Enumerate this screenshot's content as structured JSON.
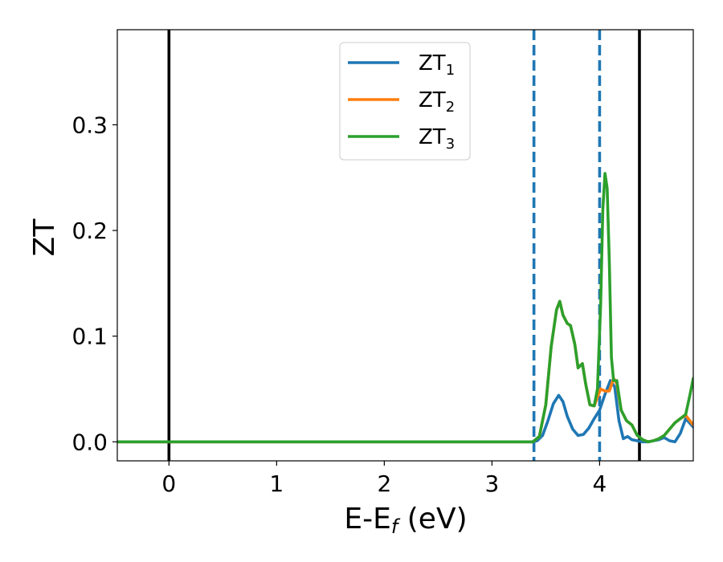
{
  "chart_data": {
    "type": "line",
    "title": "",
    "xlabel": {
      "main": "E-E",
      "sub": "f",
      "unit": " (eV)"
    },
    "ylabel": "ZT",
    "xlim": [
      -0.48,
      4.87
    ],
    "ylim": [
      -0.018,
      0.39
    ],
    "xticks": [
      0,
      1,
      2,
      3,
      4
    ],
    "xtick_labels": [
      "0",
      "1",
      "2",
      "3",
      "4"
    ],
    "yticks": [
      0.0,
      0.1,
      0.2,
      0.3
    ],
    "ytick_labels": [
      "0.0",
      "0.1",
      "0.2",
      "0.3"
    ],
    "grid": false,
    "legend_position": "top-center",
    "vlines": [
      {
        "x": 0.0,
        "style": "solid",
        "color": "#000000"
      },
      {
        "x": 4.37,
        "style": "solid",
        "color": "#000000"
      },
      {
        "x": 3.39,
        "style": "dashed",
        "color": "#1f77b4"
      },
      {
        "x": 4.0,
        "style": "dashed",
        "color": "#1f77b4"
      }
    ],
    "series": [
      {
        "name": "ZT",
        "sub": "1",
        "color": "#1f77b4",
        "x": [
          -0.48,
          3.0,
          3.38,
          3.42,
          3.47,
          3.52,
          3.57,
          3.62,
          3.66,
          3.7,
          3.75,
          3.8,
          3.85,
          3.9,
          3.95,
          4.0,
          4.05,
          4.1,
          4.14,
          4.18,
          4.22,
          4.26,
          4.3,
          4.35,
          4.4,
          4.45,
          4.5,
          4.55,
          4.6,
          4.65,
          4.7,
          4.75,
          4.8,
          4.87
        ],
        "y": [
          0.0,
          0.0,
          0.0,
          0.001,
          0.006,
          0.02,
          0.036,
          0.044,
          0.038,
          0.024,
          0.012,
          0.006,
          0.007,
          0.013,
          0.022,
          0.03,
          0.045,
          0.058,
          0.052,
          0.02,
          0.003,
          0.005,
          0.002,
          0.001,
          0.0,
          0.0,
          0.001,
          0.002,
          0.004,
          0.001,
          0.0,
          0.008,
          0.022,
          0.014
        ]
      },
      {
        "name": "ZT",
        "sub": "2",
        "color": "#ff7f0e",
        "x": [
          -0.48,
          3.0,
          3.38,
          3.44,
          3.5,
          3.55,
          3.6,
          3.63,
          3.66,
          3.7,
          3.73,
          3.77,
          3.8,
          3.84,
          3.87,
          3.91,
          3.95,
          3.99,
          4.01,
          4.05,
          4.09,
          4.13,
          4.16,
          4.2,
          4.25,
          4.3,
          4.35,
          4.4,
          4.45,
          4.5,
          4.55,
          4.6,
          4.65,
          4.7,
          4.75,
          4.8,
          4.87
        ],
        "y": [
          0.0,
          0.0,
          0.0,
          0.005,
          0.035,
          0.09,
          0.125,
          0.133,
          0.12,
          0.112,
          0.11,
          0.092,
          0.07,
          0.074,
          0.055,
          0.035,
          0.034,
          0.045,
          0.05,
          0.048,
          0.048,
          0.06,
          0.055,
          0.03,
          0.02,
          0.016,
          0.006,
          0.002,
          0.0,
          0.001,
          0.003,
          0.006,
          0.012,
          0.018,
          0.022,
          0.025,
          0.016
        ]
      },
      {
        "name": "ZT",
        "sub": "3",
        "color": "#2ca02c",
        "x": [
          -0.48,
          3.0,
          3.38,
          3.44,
          3.5,
          3.55,
          3.6,
          3.63,
          3.66,
          3.7,
          3.73,
          3.77,
          3.8,
          3.84,
          3.87,
          3.91,
          3.95,
          3.98,
          4.01,
          4.03,
          4.05,
          4.07,
          4.09,
          4.11,
          4.13,
          4.16,
          4.2,
          4.25,
          4.3,
          4.35,
          4.4,
          4.45,
          4.5,
          4.55,
          4.6,
          4.65,
          4.7,
          4.75,
          4.8,
          4.84,
          4.87
        ],
        "y": [
          0.0,
          0.0,
          0.0,
          0.005,
          0.035,
          0.09,
          0.125,
          0.133,
          0.12,
          0.112,
          0.11,
          0.092,
          0.07,
          0.074,
          0.055,
          0.035,
          0.034,
          0.05,
          0.13,
          0.22,
          0.254,
          0.24,
          0.17,
          0.08,
          0.058,
          0.058,
          0.03,
          0.02,
          0.016,
          0.006,
          0.002,
          0.0,
          0.001,
          0.003,
          0.006,
          0.012,
          0.018,
          0.022,
          0.026,
          0.045,
          0.06
        ]
      }
    ]
  }
}
